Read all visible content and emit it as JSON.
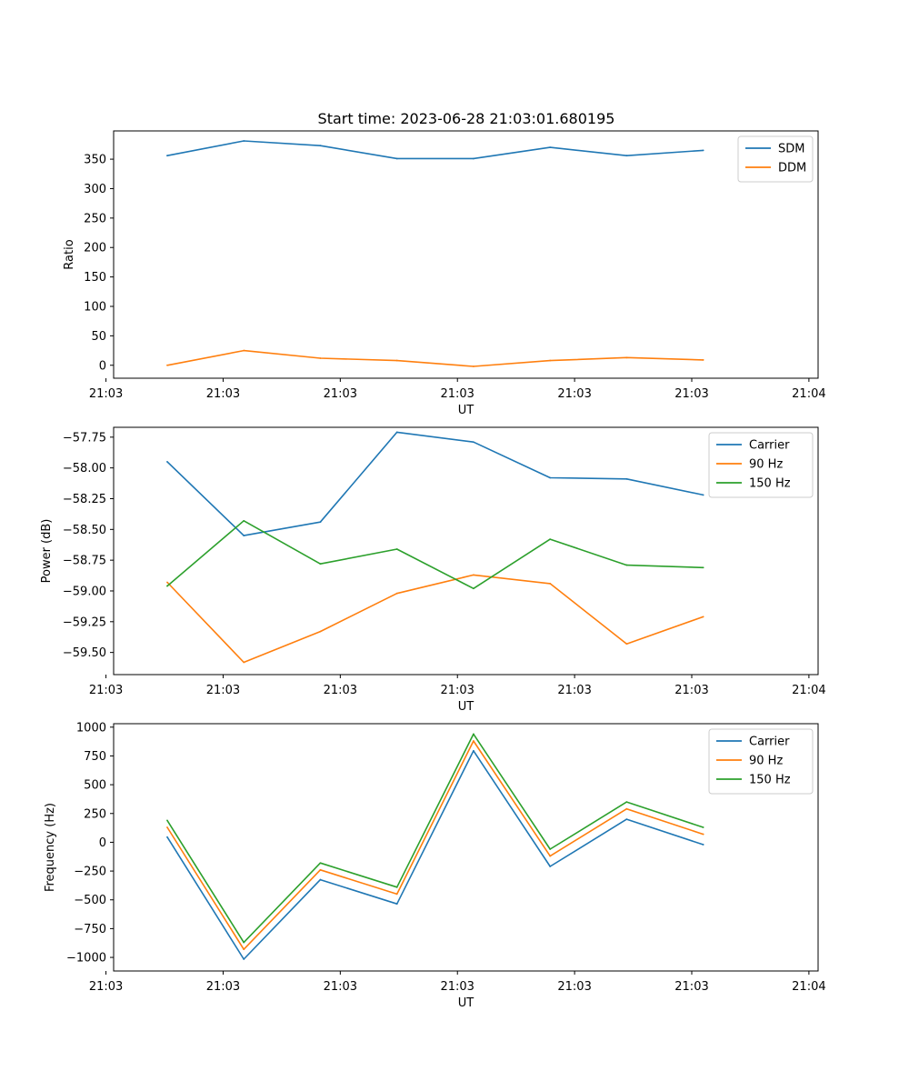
{
  "figure_title": "Start time: 2023-06-28 21:03:01.680195",
  "chart_data": [
    {
      "type": "line",
      "title": "Start time: 2023-06-28 21:03:01.680195",
      "xlabel": "UT",
      "ylabel": "Ratio",
      "x": [
        1,
        2,
        3,
        4,
        5,
        6,
        7,
        8
      ],
      "xlim": [
        0.3,
        9.5
      ],
      "x_ticks": [
        {
          "value": 0.2,
          "label": "21:03"
        },
        {
          "value": 1.73,
          "label": "21:03"
        },
        {
          "value": 3.26,
          "label": "21:03"
        },
        {
          "value": 4.79,
          "label": "21:03"
        },
        {
          "value": 6.32,
          "label": "21:03"
        },
        {
          "value": 7.85,
          "label": "21:03"
        },
        {
          "value": 9.38,
          "label": "21:04"
        }
      ],
      "ylim": [
        -22,
        398
      ],
      "y_ticks": [
        {
          "value": 0,
          "label": "0"
        },
        {
          "value": 50,
          "label": "50"
        },
        {
          "value": 100,
          "label": "100"
        },
        {
          "value": 150,
          "label": "150"
        },
        {
          "value": 200,
          "label": "200"
        },
        {
          "value": 250,
          "label": "250"
        },
        {
          "value": 300,
          "label": "300"
        },
        {
          "value": 350,
          "label": "350"
        }
      ],
      "legend_position": "top-right",
      "series": [
        {
          "name": "SDM",
          "color": "#1f77b4",
          "values": [
            356,
            381,
            373,
            351,
            351,
            370,
            356,
            365
          ]
        },
        {
          "name": "DDM",
          "color": "#ff7f0e",
          "values": [
            0,
            25,
            12,
            8,
            -2,
            8,
            13,
            9
          ]
        }
      ]
    },
    {
      "type": "line",
      "title": "",
      "xlabel": "UT",
      "ylabel": "Power (dB)",
      "x": [
        1,
        2,
        3,
        4,
        5,
        6,
        7,
        8
      ],
      "xlim": [
        0.3,
        9.5
      ],
      "x_ticks": [
        {
          "value": 0.2,
          "label": "21:03"
        },
        {
          "value": 1.73,
          "label": "21:03"
        },
        {
          "value": 3.26,
          "label": "21:03"
        },
        {
          "value": 4.79,
          "label": "21:03"
        },
        {
          "value": 6.32,
          "label": "21:03"
        },
        {
          "value": 7.85,
          "label": "21:03"
        },
        {
          "value": 9.38,
          "label": "21:04"
        }
      ],
      "ylim": [
        -59.68,
        -57.67
      ],
      "y_ticks": [
        {
          "value": -59.5,
          "label": "−59.50"
        },
        {
          "value": -59.25,
          "label": "−59.25"
        },
        {
          "value": -59.0,
          "label": "−59.00"
        },
        {
          "value": -58.75,
          "label": "−58.75"
        },
        {
          "value": -58.5,
          "label": "−58.50"
        },
        {
          "value": -58.25,
          "label": "−58.25"
        },
        {
          "value": -58.0,
          "label": "−58.00"
        },
        {
          "value": -57.75,
          "label": "−57.75"
        }
      ],
      "legend_position": "top-right",
      "series": [
        {
          "name": "Carrier",
          "color": "#1f77b4",
          "values": [
            -57.95,
            -58.55,
            -58.44,
            -57.71,
            -57.79,
            -58.08,
            -58.09,
            -58.22
          ]
        },
        {
          "name": "90 Hz",
          "color": "#ff7f0e",
          "values": [
            -58.93,
            -59.58,
            -59.33,
            -59.02,
            -58.87,
            -58.94,
            -59.43,
            -59.21
          ]
        },
        {
          "name": "150 Hz",
          "color": "#2ca02c",
          "values": [
            -58.96,
            -58.43,
            -58.78,
            -58.66,
            -58.98,
            -58.58,
            -58.79,
            -58.81
          ]
        }
      ]
    },
    {
      "type": "line",
      "title": "",
      "xlabel": "UT",
      "ylabel": "Frequency (Hz)",
      "x": [
        1,
        2,
        3,
        4,
        5,
        6,
        7,
        8
      ],
      "xlim": [
        0.3,
        9.5
      ],
      "x_ticks": [
        {
          "value": 0.2,
          "label": "21:03"
        },
        {
          "value": 1.73,
          "label": "21:03"
        },
        {
          "value": 3.26,
          "label": "21:03"
        },
        {
          "value": 4.79,
          "label": "21:03"
        },
        {
          "value": 6.32,
          "label": "21:03"
        },
        {
          "value": 7.85,
          "label": "21:03"
        },
        {
          "value": 9.38,
          "label": "21:04"
        }
      ],
      "ylim": [
        -1118,
        1030
      ],
      "y_ticks": [
        {
          "value": -1000,
          "label": "−1000"
        },
        {
          "value": -750,
          "label": "−750"
        },
        {
          "value": -500,
          "label": "−500"
        },
        {
          "value": -250,
          "label": "−250"
        },
        {
          "value": 0,
          "label": "0"
        },
        {
          "value": 250,
          "label": "250"
        },
        {
          "value": 500,
          "label": "500"
        },
        {
          "value": 750,
          "label": "750"
        },
        {
          "value": 1000,
          "label": "1000"
        }
      ],
      "legend_position": "top-right",
      "series": [
        {
          "name": "Carrier",
          "color": "#1f77b4",
          "values": [
            45,
            -1015,
            -325,
            -535,
            795,
            -210,
            200,
            -20
          ]
        },
        {
          "name": "90 Hz",
          "color": "#ff7f0e",
          "values": [
            130,
            -930,
            -240,
            -450,
            880,
            -120,
            290,
            70
          ]
        },
        {
          "name": "150 Hz",
          "color": "#2ca02c",
          "values": [
            190,
            -870,
            -180,
            -390,
            940,
            -60,
            350,
            130
          ]
        }
      ]
    }
  ]
}
